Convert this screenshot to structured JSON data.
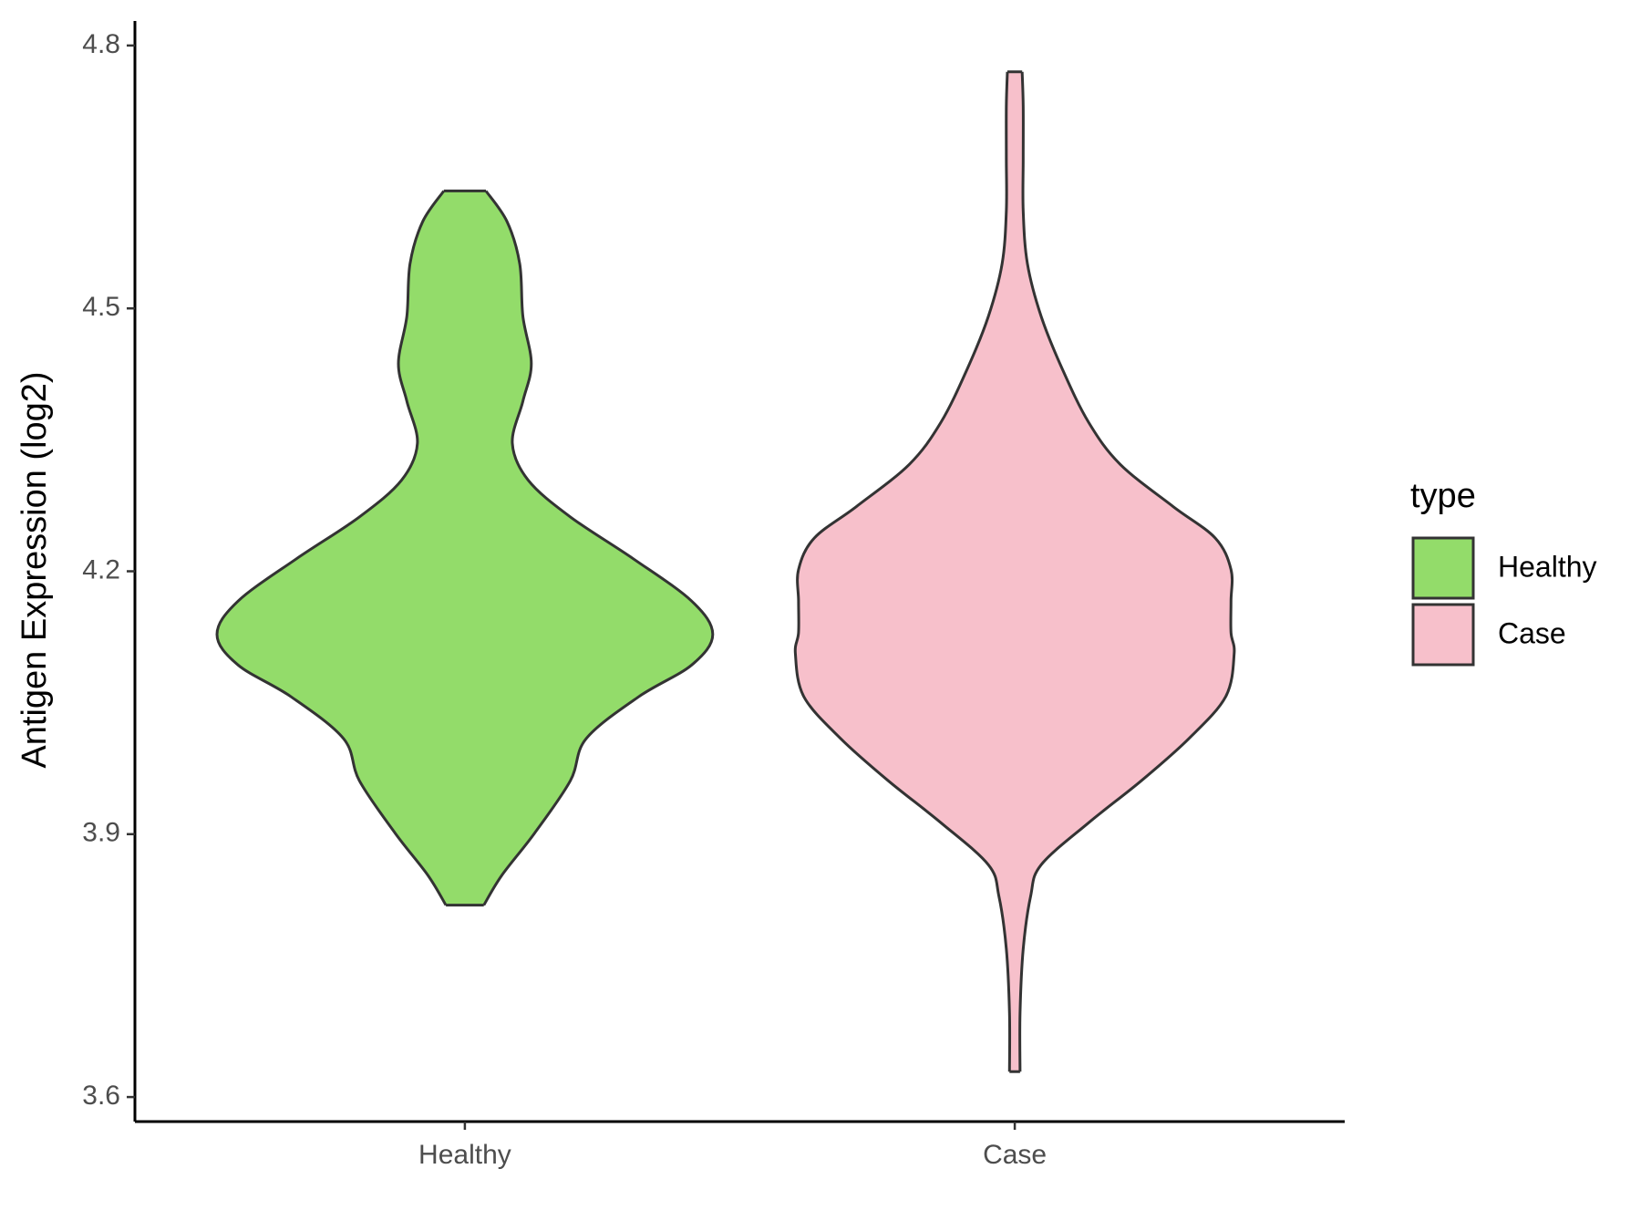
{
  "chart_data": {
    "type": "violin",
    "y_label": "Antigen Expression (log2)",
    "legend_title": "type",
    "categories": [
      "Healthy",
      "Case"
    ],
    "ylim": [
      3.572,
      4.828
    ],
    "yticks": [
      3.6,
      3.9,
      4.2,
      4.5,
      4.8
    ],
    "grid": false,
    "legend_position": "right",
    "series": [
      {
        "name": "Healthy",
        "color": "#93dc6a",
        "y": [
          3.819,
          3.853,
          3.901,
          3.961,
          4.009,
          4.057,
          4.093,
          4.128,
          4.166,
          4.214,
          4.262,
          4.304,
          4.346,
          4.394,
          4.437,
          4.491,
          4.551,
          4.599,
          4.634
        ],
        "density": [
          0.18,
          0.35,
          0.66,
          1.0,
          1.15,
          1.65,
          2.15,
          2.35,
          2.15,
          1.6,
          1.0,
          0.6,
          0.45,
          0.55,
          0.63,
          0.55,
          0.52,
          0.4,
          0.2
        ]
      },
      {
        "name": "Case",
        "color": "#f7c0cb",
        "y": [
          3.629,
          3.696,
          3.769,
          3.829,
          3.865,
          3.913,
          3.961,
          4.009,
          4.057,
          4.106,
          4.13,
          4.166,
          4.202,
          4.238,
          4.274,
          4.322,
          4.37,
          4.431,
          4.491,
          4.551,
          4.611,
          4.671,
          4.731,
          4.77
        ],
        "density": [
          0.05,
          0.05,
          0.08,
          0.15,
          0.25,
          0.7,
          1.2,
          1.65,
          2.0,
          2.08,
          2.05,
          2.05,
          2.05,
          1.9,
          1.5,
          1.0,
          0.7,
          0.45,
          0.25,
          0.12,
          0.08,
          0.08,
          0.08,
          0.07
        ]
      }
    ]
  }
}
